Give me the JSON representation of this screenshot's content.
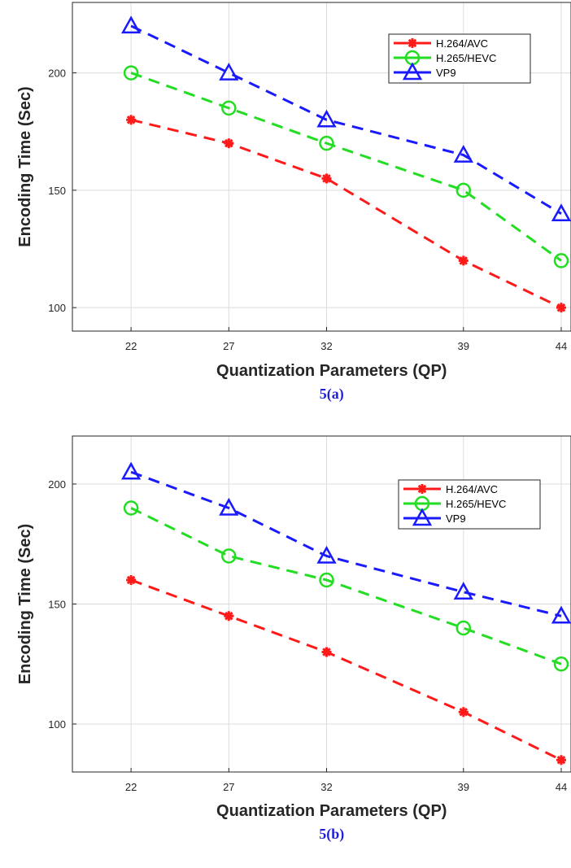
{
  "chart_data": [
    {
      "type": "line",
      "caption": "5(a)",
      "xlabel": "Quantization Parameters (QP)",
      "ylabel": "Encoding Time (Sec)",
      "categories": [
        "22",
        "27",
        "32",
        "39",
        "44"
      ],
      "x": [
        22,
        27,
        32,
        39,
        44
      ],
      "xlim": [
        19,
        44.5
      ],
      "ylim": [
        90,
        230
      ],
      "yticks": [
        100,
        150,
        200
      ],
      "grid": true,
      "legend": "top-right",
      "series": [
        {
          "name": "H.264/AVC",
          "values": [
            180,
            170,
            155,
            120,
            100
          ],
          "color": "#ff1a1a",
          "marker": "asterisk"
        },
        {
          "name": "H.265/HEVC",
          "values": [
            200,
            185,
            170,
            150,
            120
          ],
          "color": "#22dd22",
          "marker": "circle"
        },
        {
          "name": "VP9",
          "values": [
            220,
            200,
            180,
            165,
            140
          ],
          "color": "#1a1aff",
          "marker": "triangle"
        }
      ]
    },
    {
      "type": "line",
      "caption": "5(b)",
      "xlabel": "Quantization Parameters (QP)",
      "ylabel": "Encoding Time (Sec)",
      "categories": [
        "22",
        "27",
        "32",
        "39",
        "44"
      ],
      "x": [
        22,
        27,
        32,
        39,
        44
      ],
      "xlim": [
        19,
        44.5
      ],
      "ylim": [
        80,
        220
      ],
      "yticks": [
        100,
        150,
        200
      ],
      "grid": true,
      "legend": "top-right",
      "series": [
        {
          "name": "H.264/AVC",
          "values": [
            160,
            145,
            130,
            105,
            85
          ],
          "color": "#ff1a1a",
          "marker": "asterisk"
        },
        {
          "name": "H.265/HEVC",
          "values": [
            190,
            170,
            160,
            140,
            125
          ],
          "color": "#22dd22",
          "marker": "circle"
        },
        {
          "name": "VP9",
          "values": [
            205,
            190,
            170,
            155,
            145
          ],
          "color": "#1a1aff",
          "marker": "triangle"
        }
      ]
    }
  ]
}
